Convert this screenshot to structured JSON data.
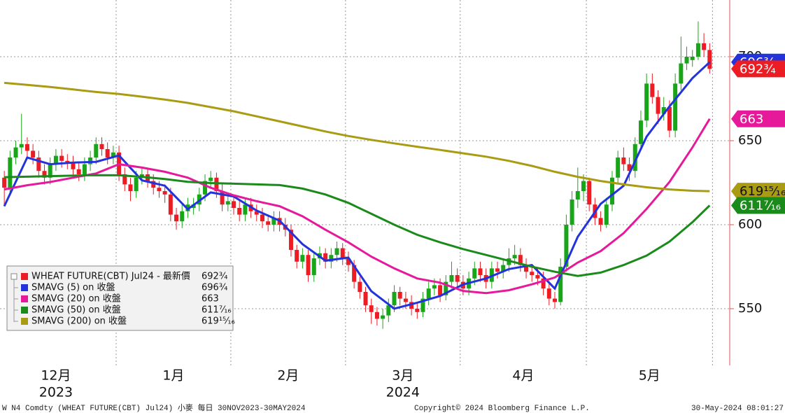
{
  "chart_data": {
    "type": "candlestick",
    "ylim": [
      516.25,
      733.75
    ],
    "yticks": [
      550,
      600,
      650,
      700
    ],
    "xlim": [
      -0.75,
      126.5
    ],
    "xticks": [
      {
        "value": 9,
        "label": "12月"
      },
      {
        "value": 29.5,
        "label": "1月"
      },
      {
        "value": 49.5,
        "label": "2月"
      },
      {
        "value": 69.5,
        "label": "3月"
      },
      {
        "value": 90.5,
        "label": "4月"
      },
      {
        "value": 112.5,
        "label": "5月"
      }
    ],
    "year_labels": [
      {
        "value": 9,
        "label": "2023"
      },
      {
        "value": 69.5,
        "label": "2024"
      }
    ],
    "xgrid": [
      19.5,
      39.5,
      59.5,
      79.5,
      101.5,
      123.5
    ],
    "grid": true,
    "up_color": "#19a519",
    "down_color": "#ec1c24",
    "candles": {
      "name": "WHEAT FUTURE(CBT) Jul24 - 最新價",
      "color": "#ec1c24",
      "last": {
        "value": 692.75,
        "label": "692¾"
      },
      "open": [
        628,
        622,
        640,
        646,
        648,
        644,
        640,
        632,
        628,
        636,
        641,
        638,
        637,
        633,
        630,
        636,
        640,
        648,
        645,
        640,
        643,
        630,
        624,
        620,
        628,
        630,
        626,
        622,
        620,
        618,
        606,
        602,
        608,
        610,
        612,
        618,
        626,
        628,
        620,
        612,
        614,
        610,
        606,
        612,
        608,
        606,
        602,
        600,
        604,
        600,
        597,
        585,
        578,
        582,
        570,
        580,
        583,
        578,
        582,
        586,
        580,
        576,
        566,
        560,
        552,
        548,
        544,
        546,
        552,
        560,
        556,
        554,
        550,
        548,
        556,
        562,
        564,
        558,
        566,
        570,
        566,
        562,
        568,
        574,
        570,
        566,
        574,
        572,
        576,
        580,
        582,
        576,
        572,
        570,
        568,
        562,
        556,
        554,
        575,
        600,
        615,
        620,
        626,
        612,
        604,
        600,
        612,
        628,
        640,
        636,
        632,
        648,
        662,
        684,
        676,
        666,
        670,
        656,
        684,
        696,
        698,
        700,
        708,
        704
      ],
      "high": [
        632,
        644,
        650,
        666,
        652,
        648,
        644,
        636,
        640,
        645,
        645,
        642,
        641,
        637,
        640,
        644,
        652,
        652,
        649,
        647,
        647,
        634,
        628,
        632,
        634,
        634,
        630,
        626,
        624,
        622,
        610,
        612,
        616,
        616,
        622,
        630,
        632,
        631,
        624,
        618,
        618,
        614,
        616,
        616,
        612,
        610,
        606,
        608,
        608,
        604,
        600,
        588,
        586,
        585,
        584,
        587,
        586,
        586,
        590,
        589,
        584,
        579,
        569,
        563,
        556,
        551,
        550,
        556,
        564,
        563,
        560,
        558,
        554,
        560,
        566,
        568,
        568,
        570,
        578,
        574,
        570,
        572,
        578,
        578,
        574,
        578,
        578,
        580,
        586,
        588,
        586,
        580,
        576,
        574,
        572,
        566,
        560,
        580,
        606,
        620,
        634,
        630,
        628,
        616,
        608,
        616,
        632,
        644,
        646,
        640,
        652,
        668,
        690,
        690,
        680,
        676,
        674,
        690,
        712,
        706,
        704,
        721,
        714,
        708
      ],
      "low": [
        612,
        618,
        636,
        642,
        640,
        636,
        628,
        624,
        624,
        632,
        634,
        633,
        629,
        626,
        626,
        632,
        636,
        641,
        636,
        636,
        626,
        620,
        614,
        616,
        624,
        622,
        618,
        616,
        613,
        602,
        597,
        598,
        604,
        606,
        608,
        614,
        622,
        616,
        608,
        608,
        606,
        602,
        602,
        604,
        602,
        598,
        596,
        596,
        596,
        593,
        581,
        574,
        574,
        566,
        566,
        576,
        574,
        574,
        578,
        576,
        572,
        562,
        556,
        548,
        541,
        540,
        538,
        542,
        548,
        552,
        550,
        546,
        544,
        545,
        552,
        558,
        554,
        555,
        562,
        562,
        558,
        558,
        564,
        566,
        562,
        562,
        568,
        568,
        572,
        576,
        572,
        568,
        566,
        564,
        558,
        552,
        550,
        552,
        572,
        596,
        610,
        614,
        608,
        600,
        596,
        598,
        608,
        624,
        632,
        626,
        628,
        644,
        658,
        672,
        660,
        662,
        652,
        652,
        680,
        692,
        694,
        698,
        700,
        690
      ],
      "close": [
        622,
        640,
        646,
        648,
        644,
        640,
        632,
        628,
        636,
        641,
        638,
        637,
        633,
        630,
        636,
        640,
        648,
        645,
        640,
        643,
        630,
        624,
        620,
        628,
        630,
        626,
        622,
        620,
        618,
        606,
        602,
        608,
        612,
        612,
        618,
        626,
        628,
        620,
        612,
        614,
        610,
        606,
        612,
        608,
        606,
        602,
        600,
        604,
        600,
        597,
        585,
        578,
        582,
        570,
        580,
        583,
        578,
        582,
        586,
        580,
        576,
        566,
        560,
        552,
        548,
        544,
        546,
        552,
        560,
        556,
        554,
        550,
        548,
        556,
        562,
        564,
        558,
        566,
        570,
        566,
        562,
        568,
        574,
        570,
        566,
        574,
        572,
        576,
        580,
        582,
        576,
        572,
        570,
        568,
        562,
        556,
        554,
        575,
        600,
        615,
        620,
        626,
        612,
        604,
        600,
        612,
        628,
        640,
        636,
        632,
        648,
        662,
        684,
        676,
        666,
        670,
        656,
        684,
        696,
        700,
        700,
        708,
        704,
        692.75
      ]
    },
    "line_x": [
      0,
      4,
      8,
      12,
      16,
      20,
      24,
      28,
      32,
      36,
      40,
      44,
      48,
      52,
      56,
      60,
      64,
      68,
      72,
      76,
      80,
      84,
      88,
      92,
      96,
      100,
      104,
      108,
      112,
      116,
      120,
      123
    ],
    "series": [
      {
        "name": "SMAVG (5)  on 收盤",
        "color": "#2233dd",
        "last": {
          "value": 696.75,
          "label": "696¾"
        },
        "values": [
          611,
          640,
          636,
          637,
          637.4,
          641.2,
          626.4,
          623.2,
          609.2,
          619.2,
          616.8,
          608.4,
          602.4,
          588.4,
          578.6,
          580.4,
          560.4,
          550,
          553.6,
          557.6,
          564.4,
          568,
          573.6,
          576,
          562,
          592.8,
          612.4,
          623.2,
          652.4,
          670.4,
          687.2,
          696.75
        ]
      },
      {
        "name": "SMAVG (20)  on 收盤",
        "color": "#e6199b",
        "last": {
          "value": 663,
          "label": "663"
        },
        "values": [
          621,
          623.5,
          625.4,
          628,
          630.5,
          636,
          634,
          631.5,
          628,
          622,
          617.5,
          614,
          611,
          605,
          597,
          589.5,
          581,
          574,
          568,
          565.5,
          560.6,
          559.3,
          561,
          564.5,
          568.6,
          577.5,
          584.3,
          595,
          609.4,
          625.4,
          646,
          663
        ]
      },
      {
        "name": "SMAVG (50)  on 收盤",
        "color": "#1a8a1a",
        "last": {
          "value": 611.4375,
          "label": "611⁷⁄₁₆"
        },
        "values": [
          628.3,
          628.6,
          628.9,
          629.2,
          629.5,
          629.4,
          628.5,
          627.2,
          625.5,
          624.8,
          624.4,
          624,
          623.6,
          621.5,
          618,
          613,
          606.5,
          600,
          594,
          589.5,
          585.5,
          582,
          578.5,
          575,
          572,
          569.5,
          571.5,
          576,
          581.6,
          589.9,
          601.5,
          611.44
        ]
      },
      {
        "name": "SMAVG (200)  on 收盤",
        "color": "#a99b12",
        "last": {
          "value": 619.9375,
          "label": "619¹⁵⁄₁₆"
        },
        "values": [
          684.4,
          683.2,
          682,
          680.5,
          679,
          677.8,
          676.2,
          674.5,
          672.5,
          670,
          667.5,
          664.5,
          661.5,
          658.5,
          655.5,
          652.8,
          650.5,
          648.4,
          646.4,
          644.5,
          642.5,
          640.5,
          638,
          635,
          631.5,
          628.5,
          626,
          624,
          622.3,
          621,
          620.2,
          619.94
        ]
      }
    ],
    "footer": {
      "left": "W N4 Comdty (WHEAT FUTURE(CBT) Jul24) 小麥  每日 30NOV2023-30MAY2024",
      "center": "Copyright© 2024 Bloomberg Finance L.P.",
      "right": "30-May-2024 08:01:27"
    }
  }
}
